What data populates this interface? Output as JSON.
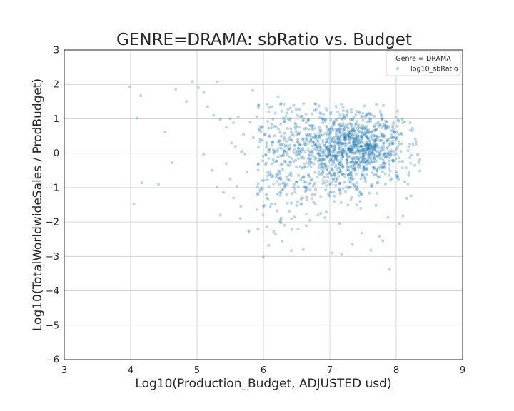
{
  "chart_data": {
    "type": "scatter",
    "title": "GENRE=DRAMA: sbRatio vs. Budget",
    "xlabel": "Log10(Production_Budget, ADJUSTED usd)",
    "ylabel": "Log10(TotalWorldwideSales / ProdBudget)",
    "xlim": [
      3,
      9
    ],
    "ylim": [
      -6,
      3
    ],
    "x_ticks": [
      3,
      4,
      5,
      6,
      7,
      8,
      9
    ],
    "y_ticks": [
      -6,
      -5,
      -4,
      -3,
      -2,
      -1,
      0,
      1,
      2,
      3
    ],
    "x_tick_labels": [
      "3",
      "4",
      "5",
      "6",
      "7",
      "8",
      "9"
    ],
    "y_tick_labels": [
      "−6",
      "−5",
      "−4",
      "−3",
      "−2",
      "−1",
      "0",
      "1",
      "2",
      "3"
    ],
    "grid": true,
    "legend": {
      "title": "Genre = DRAMA",
      "placement": "top-right",
      "entries": [
        "log10_sbRatio"
      ]
    },
    "colors": {
      "point": "#1f77b4",
      "grid": "#cccccc",
      "axes": "#262626"
    },
    "series": [
      {
        "name": "log10_sbRatio",
        "x": [
          3.99,
          4.15,
          4.1,
          4.05,
          4.17,
          4.42,
          4.52,
          4.62,
          4.68,
          4.84,
          4.93,
          5.02,
          5.1,
          5.16,
          5.25,
          5.31,
          5.1,
          5.23,
          5.3,
          5.35,
          5.4,
          5.44,
          5.5,
          5.55,
          5.6,
          5.66,
          5.72,
          5.78,
          5.84,
          5.9,
          5.95,
          6.0,
          6.06,
          6.12,
          5.5,
          5.55,
          5.7,
          5.85,
          5.58,
          5.67,
          5.35,
          5.44,
          5.52,
          5.62,
          5.75,
          5.8,
          5.92,
          6.02,
          6.05,
          6.08,
          6.12,
          6.22,
          6.3,
          6.38,
          5.65,
          5.78,
          6.0,
          6.08,
          6.18,
          6.32,
          6.42,
          6.52,
          6.6,
          6.7,
          6.86,
          7.03,
          7.18,
          7.34,
          7.48,
          7.62,
          7.75,
          7.9,
          8.05,
          6.15,
          6.25,
          6.4,
          6.2,
          6.35
        ],
        "y": [
          1.93,
          1.67,
          1.02,
          -1.48,
          -0.86,
          -0.9,
          0.62,
          -0.28,
          1.86,
          1.5,
          2.08,
          1.9,
          1.76,
          1.35,
          1.1,
          2.07,
          -0.03,
          -0.5,
          -0.98,
          -1.8,
          -1.14,
          -0.3,
          -0.75,
          -1.3,
          -0.96,
          -1.55,
          -0.02,
          -2.3,
          1.82,
          1.06,
          0.39,
          -1.55,
          -0.66,
          -1.48,
          1.0,
          0.88,
          0.55,
          0.45,
          0.2,
          0.05,
          0.98,
          0.75,
          0.3,
          1.05,
          -0.55,
          0.9,
          -0.88,
          0.55,
          -2.15,
          -0.15,
          -0.7,
          1.64,
          1.02,
          0.4,
          -1.9,
          -2.25,
          -3.02,
          -2.68,
          -2.35,
          -2.1,
          -2.83,
          -2.2,
          -2.8,
          -1.95,
          -1.75,
          -2.9,
          -2.95,
          -2.65,
          -2.32,
          -2.82,
          -2.42,
          -3.38,
          -2.05,
          0.1,
          0.6,
          -0.25,
          -0.6,
          -1.2
        ],
        "cluster_center": [
          7.4,
          0.15
        ],
        "cluster_point_count": 1400
      }
    ]
  }
}
